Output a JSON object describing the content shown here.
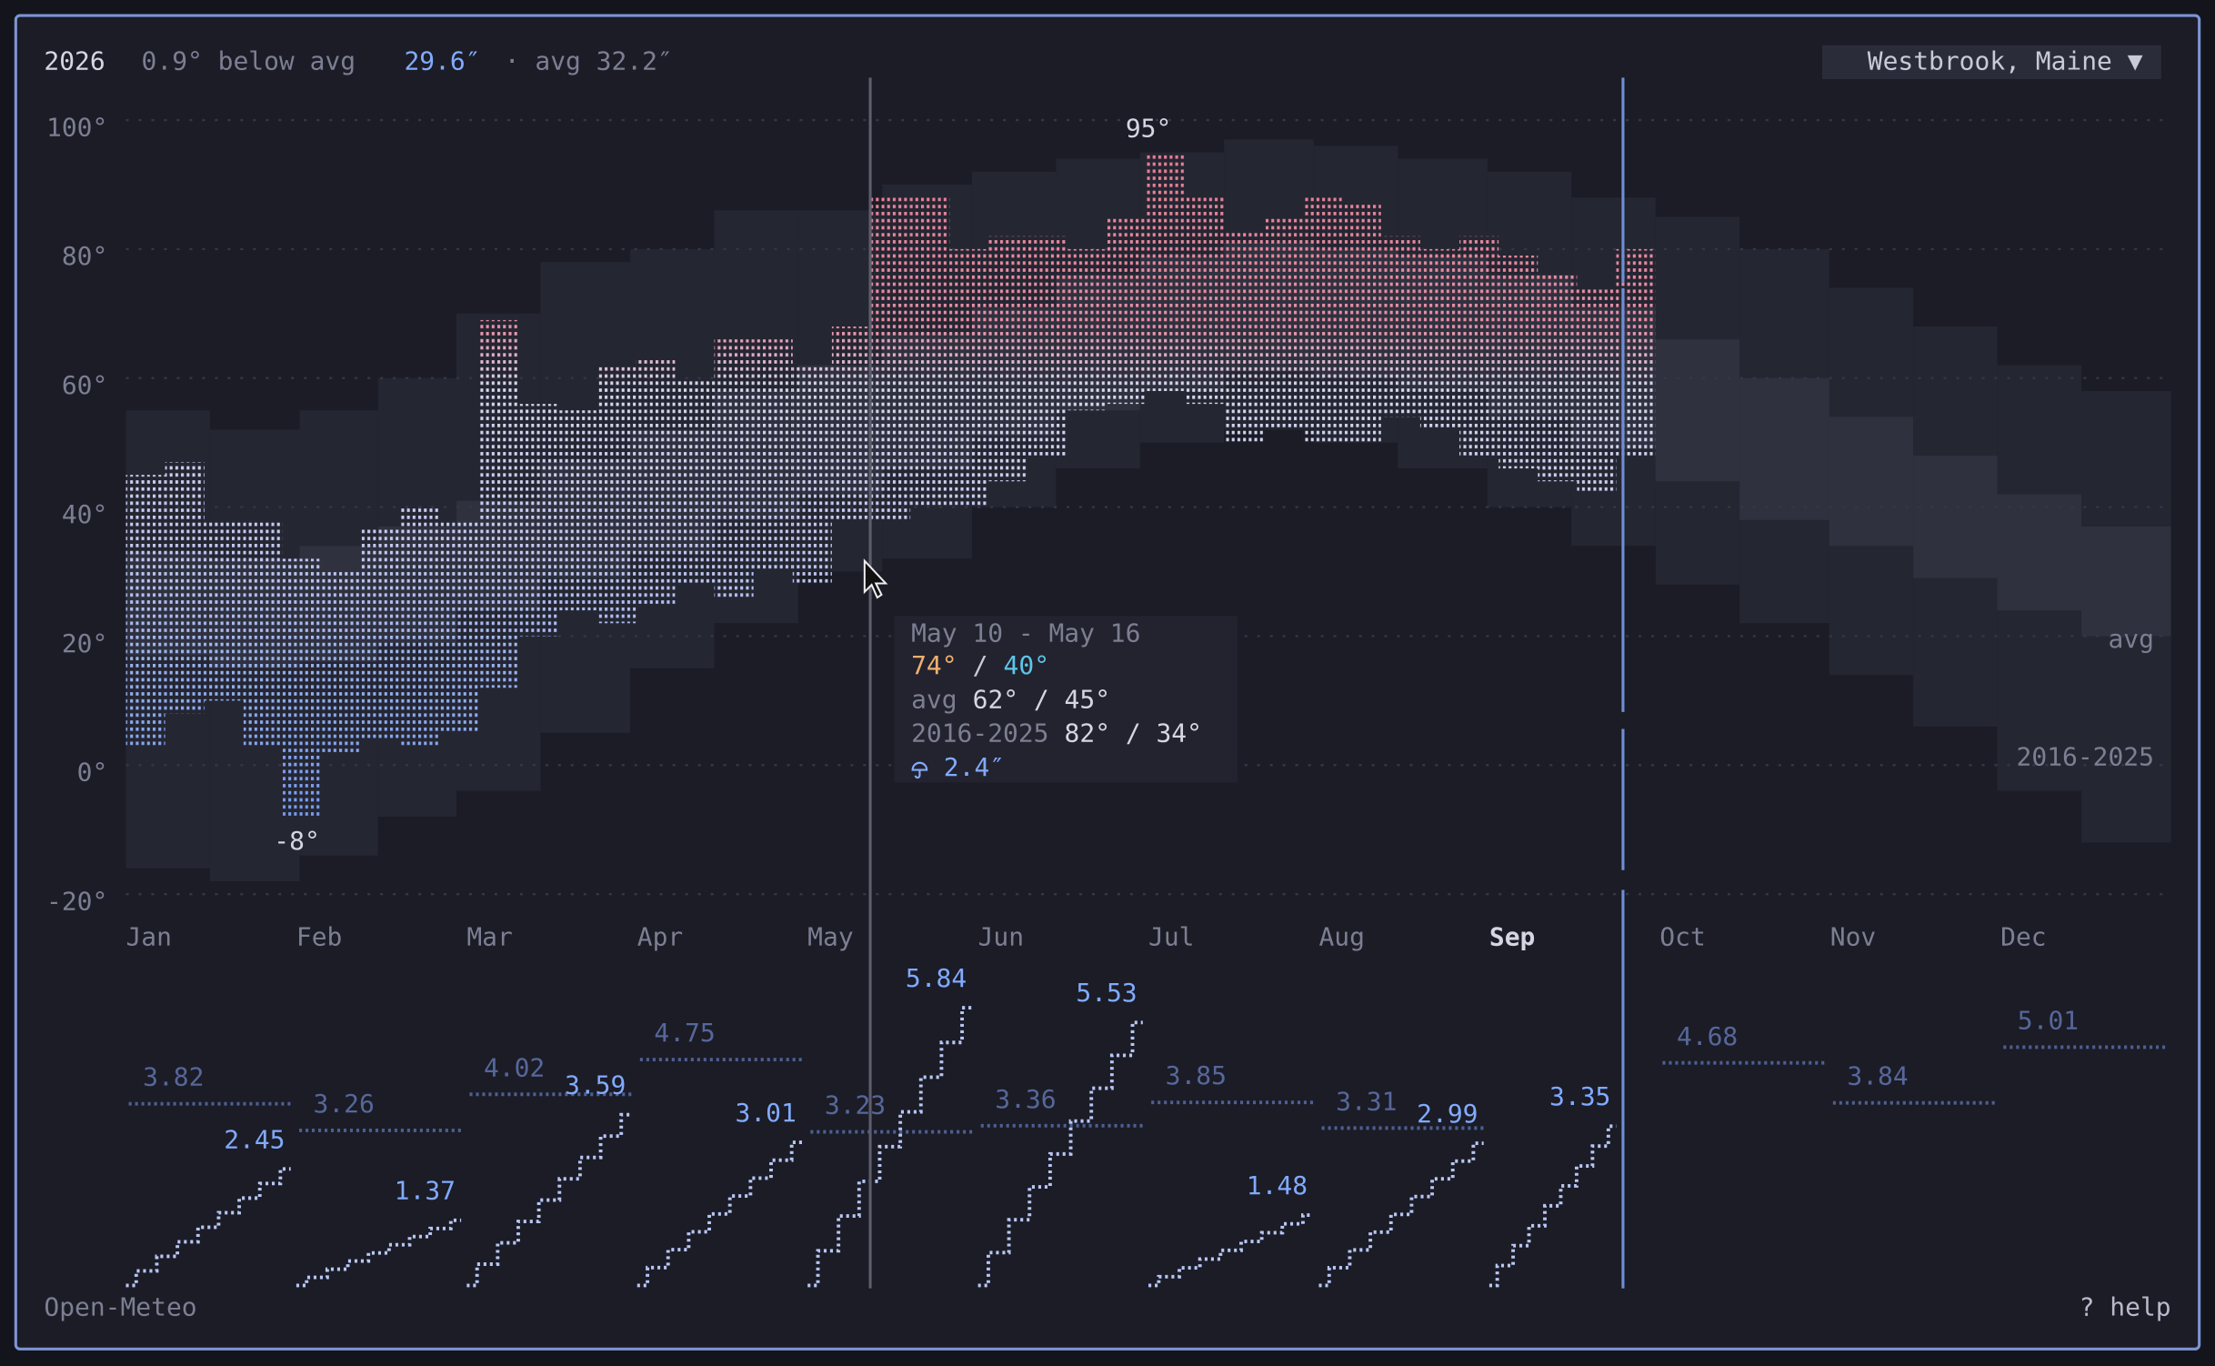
{
  "header": {
    "year": "2026",
    "anomaly": "0.9° below avg",
    "precip_total": "29.6″",
    "precip_avg": "· avg 32.2″",
    "location": "Westbrook, Maine ▼"
  },
  "chart_data": [
    {
      "type": "range",
      "categories": [
        "Jan",
        "Feb",
        "Mar",
        "Apr",
        "May",
        "Jun",
        "Jul",
        "Aug",
        "Sep",
        "Oct",
        "Nov",
        "Dec"
      ],
      "highlight": "Sep",
      "xlim": [
        0,
        365
      ],
      "ylim": [
        -20,
        100
      ],
      "yticks": [
        {
          "value": 100,
          "label": "100°"
        },
        {
          "value": 80,
          "label": "80°"
        },
        {
          "value": 60,
          "label": "60°"
        },
        {
          "value": 40,
          "label": "40°"
        },
        {
          "value": 20,
          "label": "20°"
        },
        {
          "value": 0,
          "label": "0°"
        },
        {
          "value": -20,
          "label": "-20°"
        }
      ],
      "grid": true,
      "observed": {
        "x": [
          0,
          7,
          14,
          21,
          28,
          35,
          42,
          49,
          56,
          63,
          70,
          77,
          84,
          91,
          98,
          105,
          112,
          119,
          126,
          133,
          140,
          147,
          154,
          161,
          168,
          175,
          182,
          189,
          196,
          203,
          210,
          217,
          224,
          231,
          238,
          245,
          252,
          259,
          266
        ],
        "high": [
          45,
          47,
          38,
          38,
          32,
          30,
          37,
          40,
          38,
          69,
          56,
          55,
          62,
          63,
          60,
          66,
          66,
          62,
          68,
          88,
          88,
          80,
          82,
          82,
          80,
          85,
          95,
          88,
          83,
          85,
          88,
          87,
          82,
          80,
          82,
          79,
          76,
          74,
          80
        ],
        "low": [
          3,
          8,
          10,
          3,
          -8,
          2,
          4,
          3,
          5,
          12,
          20,
          24,
          22,
          25,
          28,
          26,
          30,
          28,
          38,
          38,
          40,
          40,
          44,
          48,
          55,
          56,
          58,
          56,
          50,
          52,
          50,
          50,
          54,
          52,
          48,
          46,
          44,
          42,
          48
        ]
      },
      "max_label": "95°",
      "min_label": "-8°",
      "avg": {
        "label": "avg",
        "x": [
          0,
          15,
          31,
          45,
          59,
          74,
          90,
          105,
          120,
          135,
          151,
          166,
          181,
          196,
          212,
          227,
          243,
          258,
          273,
          288,
          304,
          319,
          334,
          349
        ],
        "high": [
          33,
          32,
          34,
          37,
          41,
          47,
          52,
          58,
          62,
          67,
          71,
          76,
          79,
          81,
          80,
          79,
          76,
          71,
          66,
          60,
          54,
          48,
          42,
          37
        ],
        "low": [
          17,
          15,
          16,
          19,
          24,
          29,
          33,
          38,
          42,
          46,
          51,
          55,
          58,
          61,
          60,
          58,
          54,
          49,
          44,
          38,
          34,
          29,
          24,
          20
        ]
      },
      "range": {
        "label": "2016-2025",
        "x": [
          0,
          15,
          31,
          45,
          59,
          74,
          90,
          105,
          120,
          135,
          151,
          166,
          181,
          196,
          212,
          227,
          243,
          258,
          273,
          288,
          304,
          319,
          334,
          349
        ],
        "high": [
          55,
          52,
          55,
          60,
          70,
          78,
          80,
          86,
          86,
          90,
          92,
          94,
          95,
          97,
          96,
          94,
          92,
          88,
          85,
          80,
          74,
          68,
          62,
          58
        ],
        "low": [
          -16,
          -18,
          -14,
          -8,
          -4,
          5,
          15,
          22,
          30,
          32,
          40,
          46,
          50,
          52,
          50,
          46,
          40,
          34,
          28,
          22,
          14,
          6,
          -4,
          -12
        ]
      }
    },
    {
      "type": "precip",
      "ylim": [
        0,
        6
      ],
      "values": [
        2.45,
        1.37,
        3.59,
        3.01,
        5.84,
        5.53,
        1.48,
        2.99,
        3.35,
        null,
        null,
        null
      ],
      "avg_values": [
        3.82,
        3.26,
        4.02,
        4.75,
        3.23,
        3.36,
        3.85,
        3.31,
        null,
        4.68,
        3.84,
        5.01
      ]
    }
  ],
  "tooltip": {
    "title": "May 10 - May 16",
    "high": "74°",
    "separator": "/",
    "low": "40°",
    "avg_prefix": "avg",
    "avg": "62° / 45°",
    "range_prefix": "2016-2025",
    "range": "82° / 34°",
    "precip": "2.4″"
  },
  "footer": {
    "source": "Open-Meteo",
    "help": "? help"
  }
}
